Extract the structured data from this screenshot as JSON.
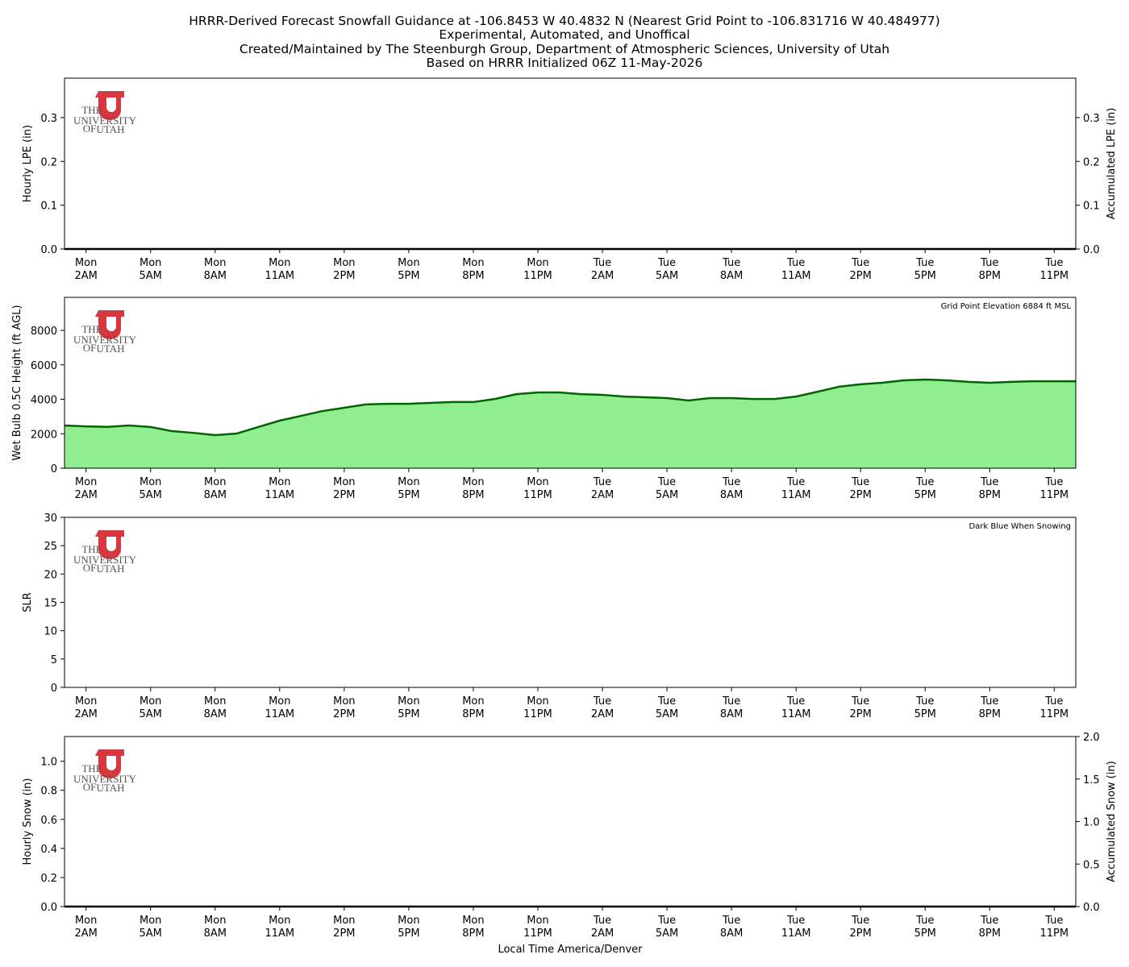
{
  "title": [
    "HRRR-Derived Forecast Snowfall Guidance at -106.8453 W 40.4832 N (Nearest Grid Point to -106.831716 W 40.484977)",
    "Experimental, Automated, and Unoffical",
    "Created/Maintained by The Steenburgh Group, Department of Atmospheric Sciences, University of Utah",
    "Based on HRRR Initialized 06Z 11-May-2026"
  ],
  "xlabel": "Local Time America/Denver",
  "logo": [
    "THE",
    "UNIVERSITY",
    "OF",
    "UTAH"
  ],
  "chart_data": [
    {
      "type": "bar-line",
      "ylabel": "Hourly LPE (in)",
      "y2label": "Accumulated LPE (in)",
      "xlim": [
        0,
        47
      ],
      "xticks": [
        {
          "value": 1,
          "label": "Mon\n2AM"
        },
        {
          "value": 4,
          "label": "Mon\n5AM"
        },
        {
          "value": 7,
          "label": "Mon\n8AM"
        },
        {
          "value": 10,
          "label": "Mon\n11AM"
        },
        {
          "value": 13,
          "label": "Mon\n2PM"
        },
        {
          "value": 16,
          "label": "Mon\n5PM"
        },
        {
          "value": 19,
          "label": "Mon\n8PM"
        },
        {
          "value": 22,
          "label": "Mon\n11PM"
        },
        {
          "value": 25,
          "label": "Tue\n2AM"
        },
        {
          "value": 28,
          "label": "Tue\n5AM"
        },
        {
          "value": 31,
          "label": "Tue\n8AM"
        },
        {
          "value": 34,
          "label": "Tue\n11AM"
        },
        {
          "value": 37,
          "label": "Tue\n2PM"
        },
        {
          "value": 40,
          "label": "Tue\n5PM"
        },
        {
          "value": 43,
          "label": "Tue\n8PM"
        },
        {
          "value": 46,
          "label": "Tue\n11PM"
        }
      ],
      "ylim": [
        0,
        0.39
      ],
      "yticks": [
        {
          "value": 0,
          "label": "0.0"
        },
        0.1,
        0.2,
        0.3
      ],
      "y2lim": [
        0,
        0.39
      ],
      "y2ticks": [
        {
          "value": 0,
          "label": "0.0"
        },
        0.1,
        0.2,
        0.3
      ],
      "x": [
        0,
        1,
        2,
        3,
        4,
        5,
        6,
        7,
        8,
        9,
        10,
        11,
        12,
        13,
        14,
        15,
        16,
        17,
        18,
        19,
        20,
        21,
        22,
        23,
        24,
        25,
        26,
        27,
        28,
        29,
        30,
        31,
        32,
        33,
        34,
        35,
        36,
        37,
        38,
        39,
        40,
        41,
        42,
        43,
        44,
        45,
        46,
        47
      ],
      "series": [
        {
          "type": "bar",
          "color": "#2e8b57",
          "values": [
            0,
            0,
            0,
            0,
            0,
            0,
            0,
            0,
            0,
            0,
            0,
            0,
            0,
            0,
            0,
            0,
            0,
            0,
            0,
            0,
            0,
            0,
            0,
            0,
            0,
            0,
            0,
            0,
            0,
            0,
            0,
            0,
            0,
            0,
            0,
            0,
            0,
            0,
            0,
            0,
            0,
            0,
            0,
            0,
            0,
            0,
            0,
            0
          ]
        },
        {
          "type": "line",
          "axis": "y2",
          "color": "#000000",
          "values": [
            0,
            0,
            0,
            0,
            0,
            0,
            0,
            0,
            0,
            0,
            0,
            0,
            0,
            0,
            0,
            0,
            0,
            0,
            0,
            0,
            0,
            0,
            0,
            0,
            0,
            0,
            0,
            0,
            0,
            0,
            0,
            0,
            0,
            0,
            0,
            0,
            0,
            0,
            0,
            0,
            0,
            0,
            0,
            0,
            0,
            0,
            0,
            0
          ]
        }
      ]
    },
    {
      "type": "area",
      "ylabel": "Wet Bulb 0.5C Height (ft AGL)",
      "annotation": "Grid Point Elevation 6884 ft MSL",
      "xlim": [
        0,
        47
      ],
      "xticks": [
        {
          "value": 1,
          "label": "Mon\n2AM"
        },
        {
          "value": 4,
          "label": "Mon\n5AM"
        },
        {
          "value": 7,
          "label": "Mon\n8AM"
        },
        {
          "value": 10,
          "label": "Mon\n11AM"
        },
        {
          "value": 13,
          "label": "Mon\n2PM"
        },
        {
          "value": 16,
          "label": "Mon\n5PM"
        },
        {
          "value": 19,
          "label": "Mon\n8PM"
        },
        {
          "value": 22,
          "label": "Mon\n11PM"
        },
        {
          "value": 25,
          "label": "Tue\n2AM"
        },
        {
          "value": 28,
          "label": "Tue\n5AM"
        },
        {
          "value": 31,
          "label": "Tue\n8AM"
        },
        {
          "value": 34,
          "label": "Tue\n11AM"
        },
        {
          "value": 37,
          "label": "Tue\n2PM"
        },
        {
          "value": 40,
          "label": "Tue\n5PM"
        },
        {
          "value": 43,
          "label": "Tue\n8PM"
        },
        {
          "value": 46,
          "label": "Tue\n11PM"
        }
      ],
      "ylim": [
        0,
        9920
      ],
      "yticks": [
        0,
        2000,
        4000,
        6000,
        8000
      ],
      "x": [
        0,
        1,
        2,
        3,
        4,
        5,
        6,
        7,
        8,
        9,
        10,
        11,
        12,
        13,
        14,
        15,
        16,
        17,
        18,
        19,
        20,
        21,
        22,
        23,
        24,
        25,
        26,
        27,
        28,
        29,
        30,
        31,
        32,
        33,
        34,
        35,
        36,
        37,
        38,
        39,
        40,
        41,
        42,
        43,
        44,
        45,
        46,
        47
      ],
      "series": [
        {
          "type": "area",
          "color": "#006400",
          "fill": "#90ee90",
          "values": [
            2480,
            2430,
            2400,
            2480,
            2390,
            2150,
            2050,
            1920,
            2010,
            2390,
            2760,
            3040,
            3320,
            3510,
            3700,
            3740,
            3740,
            3790,
            3840,
            3840,
            4020,
            4300,
            4400,
            4400,
            4300,
            4260,
            4160,
            4120,
            4070,
            3930,
            4070,
            4070,
            4020,
            4020,
            4160,
            4440,
            4730,
            4870,
            4960,
            5100,
            5150,
            5100,
            5010,
            4960,
            5010,
            5050,
            5050,
            5050
          ]
        }
      ]
    },
    {
      "type": "empty",
      "ylabel": "SLR",
      "annotation": "Dark Blue When Snowing",
      "xlim": [
        0,
        47
      ],
      "xticks": [
        {
          "value": 1,
          "label": "Mon\n2AM"
        },
        {
          "value": 4,
          "label": "Mon\n5AM"
        },
        {
          "value": 7,
          "label": "Mon\n8AM"
        },
        {
          "value": 10,
          "label": "Mon\n11AM"
        },
        {
          "value": 13,
          "label": "Mon\n2PM"
        },
        {
          "value": 16,
          "label": "Mon\n5PM"
        },
        {
          "value": 19,
          "label": "Mon\n8PM"
        },
        {
          "value": 22,
          "label": "Mon\n11PM"
        },
        {
          "value": 25,
          "label": "Tue\n2AM"
        },
        {
          "value": 28,
          "label": "Tue\n5AM"
        },
        {
          "value": 31,
          "label": "Tue\n8AM"
        },
        {
          "value": 34,
          "label": "Tue\n11AM"
        },
        {
          "value": 37,
          "label": "Tue\n2PM"
        },
        {
          "value": 40,
          "label": "Tue\n5PM"
        },
        {
          "value": 43,
          "label": "Tue\n8PM"
        },
        {
          "value": 46,
          "label": "Tue\n11PM"
        }
      ],
      "ylim": [
        0,
        30
      ],
      "yticks": [
        0,
        5,
        10,
        15,
        20,
        25,
        30
      ]
    },
    {
      "type": "bar-line",
      "ylabel": "Hourly Snow (in)",
      "y2label": "Accumulated Snow (in)",
      "xlim": [
        0,
        47
      ],
      "xticks": [
        {
          "value": 1,
          "label": "Mon\n2AM"
        },
        {
          "value": 4,
          "label": "Mon\n5AM"
        },
        {
          "value": 7,
          "label": "Mon\n8AM"
        },
        {
          "value": 10,
          "label": "Mon\n11AM"
        },
        {
          "value": 13,
          "label": "Mon\n2PM"
        },
        {
          "value": 16,
          "label": "Mon\n5PM"
        },
        {
          "value": 19,
          "label": "Mon\n8PM"
        },
        {
          "value": 22,
          "label": "Mon\n11PM"
        },
        {
          "value": 25,
          "label": "Tue\n2AM"
        },
        {
          "value": 28,
          "label": "Tue\n5AM"
        },
        {
          "value": 31,
          "label": "Tue\n8AM"
        },
        {
          "value": 34,
          "label": "Tue\n11AM"
        },
        {
          "value": 37,
          "label": "Tue\n2PM"
        },
        {
          "value": 40,
          "label": "Tue\n5PM"
        },
        {
          "value": 43,
          "label": "Tue\n8PM"
        },
        {
          "value": 46,
          "label": "Tue\n11PM"
        }
      ],
      "ylim": [
        0,
        1.17
      ],
      "yticks": [
        {
          "value": 0,
          "label": "0.0"
        },
        0.2,
        0.4,
        0.6,
        0.8,
        {
          "value": 1,
          "label": "1.0"
        }
      ],
      "y2lim": [
        0,
        2
      ],
      "y2ticks": [
        {
          "value": 0,
          "label": "0.0"
        },
        0.5,
        {
          "value": 1,
          "label": "1.0"
        },
        1.5,
        {
          "value": 2,
          "label": "2.0"
        }
      ],
      "x": [
        0,
        1,
        2,
        3,
        4,
        5,
        6,
        7,
        8,
        9,
        10,
        11,
        12,
        13,
        14,
        15,
        16,
        17,
        18,
        19,
        20,
        21,
        22,
        23,
        24,
        25,
        26,
        27,
        28,
        29,
        30,
        31,
        32,
        33,
        34,
        35,
        36,
        37,
        38,
        39,
        40,
        41,
        42,
        43,
        44,
        45,
        46,
        47
      ],
      "series": [
        {
          "type": "bar",
          "color": "#00008b",
          "values": [
            0,
            0,
            0,
            0,
            0,
            0,
            0,
            0,
            0,
            0,
            0,
            0,
            0,
            0,
            0,
            0,
            0,
            0,
            0,
            0,
            0,
            0,
            0,
            0,
            0,
            0,
            0,
            0,
            0,
            0,
            0,
            0,
            0,
            0,
            0,
            0,
            0,
            0,
            0,
            0,
            0,
            0,
            0,
            0,
            0,
            0,
            0,
            0
          ]
        },
        {
          "type": "line",
          "axis": "y2",
          "color": "#000000",
          "values": [
            0,
            0,
            0,
            0,
            0,
            0,
            0,
            0,
            0,
            0,
            0,
            0,
            0,
            0,
            0,
            0,
            0,
            0,
            0,
            0,
            0,
            0,
            0,
            0,
            0,
            0,
            0,
            0,
            0,
            0,
            0,
            0,
            0,
            0,
            0,
            0,
            0,
            0,
            0,
            0,
            0,
            0,
            0,
            0,
            0,
            0,
            0,
            0
          ]
        }
      ]
    }
  ]
}
